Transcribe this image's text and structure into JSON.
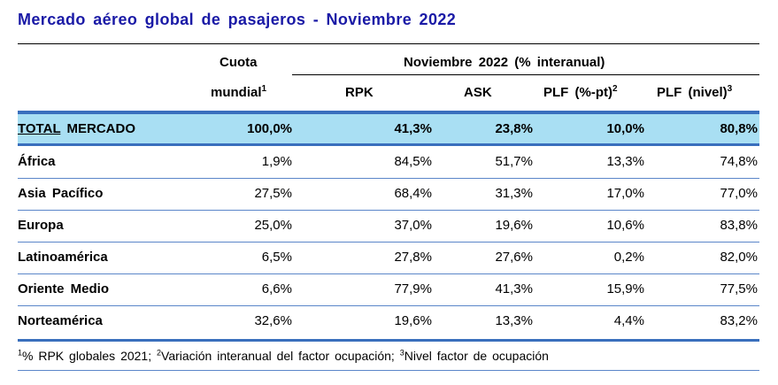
{
  "title": "Mercado aéreo global de pasajeros - Noviembre 2022",
  "header": {
    "share_line1": "Cuota",
    "share_line2": "mundial",
    "share_sup": "1",
    "group_label": "Noviembre 2022 (% interanual)",
    "rpk": "RPK",
    "ask": "ASK",
    "plf_pt": "PLF (%-pt)",
    "plf_pt_sup": "2",
    "plf_level": "PLF (nivel)",
    "plf_level_sup": "3"
  },
  "total": {
    "name_underlined": "TOTAL",
    "name_rest": "MERCADO",
    "share": "100,0%",
    "rpk": "41,3%",
    "ask": "23,8%",
    "plf_pt": "10,0%",
    "plf_level": "80,8%"
  },
  "rows": [
    {
      "name": "África",
      "share": "1,9%",
      "rpk": "84,5%",
      "ask": "51,7%",
      "plf_pt": "13,3%",
      "plf_level": "74,8%"
    },
    {
      "name": "Asia Pacífico",
      "share": "27,5%",
      "rpk": "68,4%",
      "ask": "31,3%",
      "plf_pt": "17,0%",
      "plf_level": "77,0%"
    },
    {
      "name": "Europa",
      "share": "25,0%",
      "rpk": "37,0%",
      "ask": "19,6%",
      "plf_pt": "10,6%",
      "plf_level": "83,8%"
    },
    {
      "name": "Latinoamérica",
      "share": "6,5%",
      "rpk": "27,8%",
      "ask": "27,6%",
      "plf_pt": "0,2%",
      "plf_level": "82,0%"
    },
    {
      "name": "Oriente Medio",
      "share": "6,6%",
      "rpk": "77,9%",
      "ask": "41,3%",
      "plf_pt": "15,9%",
      "plf_level": "77,5%"
    },
    {
      "name": "Norteamérica",
      "share": "32,6%",
      "rpk": "19,6%",
      "ask": "13,3%",
      "plf_pt": "4,4%",
      "plf_level": "83,2%"
    }
  ],
  "footnote": {
    "sup1": "1",
    "text1": "% RPK globales 2021; ",
    "sup2": "2",
    "text2": "Variación interanual del factor ocupación; ",
    "sup3": "3",
    "text3": "Nivel factor de ocupación"
  },
  "colors": {
    "title": "#1a1aa6",
    "total_band": "#a9dff3",
    "rule_blue": "#3a6fbd"
  }
}
